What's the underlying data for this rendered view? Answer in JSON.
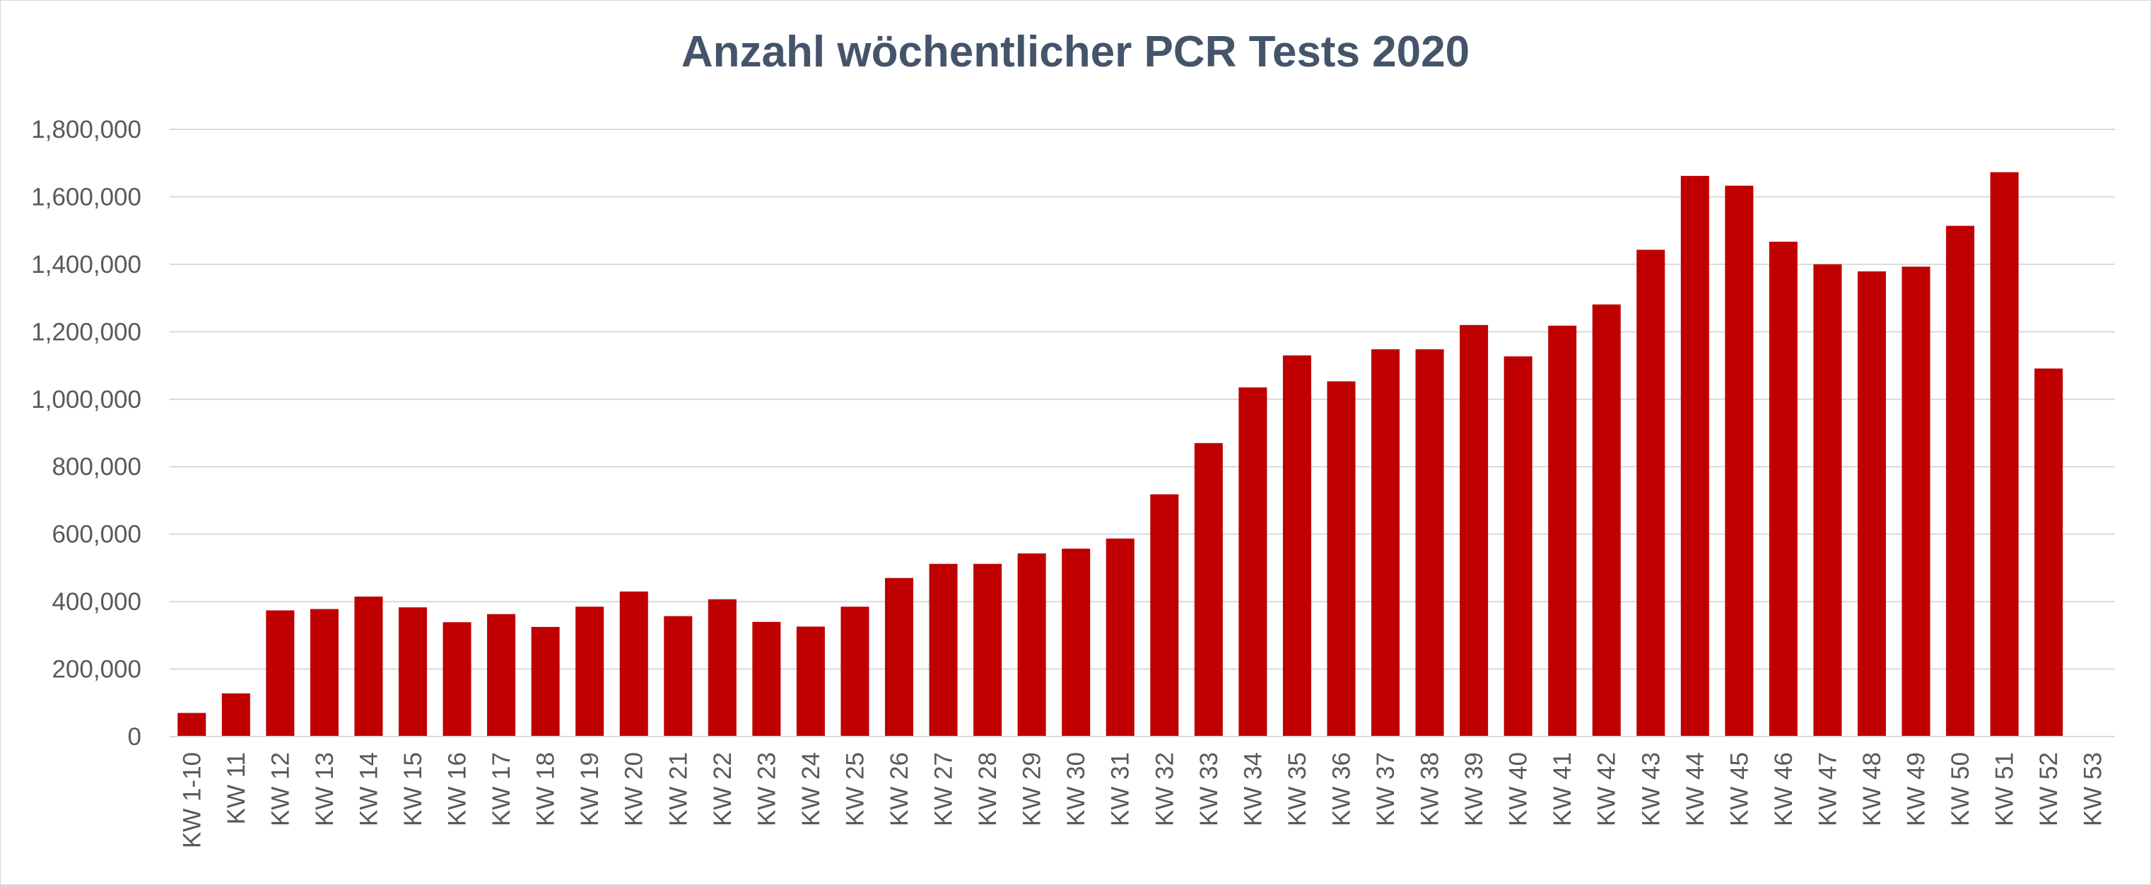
{
  "chart_data": {
    "type": "bar",
    "title": "Anzahl wöchentlicher PCR Tests 2020",
    "xlabel": "",
    "ylabel": "",
    "ylim": [
      0,
      1800000
    ],
    "yticks": [
      "0",
      "200,000",
      "400,000",
      "600,000",
      "800,000",
      "1,000,000",
      "1,200,000",
      "1,400,000",
      "1,600,000",
      "1,800,000"
    ],
    "grid": true,
    "bar_color": "#c00000",
    "categories": [
      "KW 1-10",
      "KW 11",
      "KW 12",
      "KW 13",
      "KW 14",
      "KW 15",
      "KW 16",
      "KW 17",
      "KW 18",
      "KW 19",
      "KW 20",
      "KW 21",
      "KW 22",
      "KW 23",
      "KW 24",
      "KW 25",
      "KW 26",
      "KW 27",
      "KW 28",
      "KW 29",
      "KW 30",
      "KW 31",
      "KW 32",
      "KW 33",
      "KW 34",
      "KW 35",
      "KW 36",
      "KW 37",
      "KW 38",
      "KW 39",
      "KW 40",
      "KW 41",
      "KW 42",
      "KW 43",
      "KW 44",
      "KW 45",
      "KW 46",
      "KW 47",
      "KW 48",
      "KW 49",
      "KW 50",
      "KW 51",
      "KW 52",
      "KW 53"
    ],
    "values": [
      70000,
      128000,
      374000,
      378000,
      415000,
      383000,
      339000,
      363000,
      325000,
      385000,
      430000,
      357000,
      407000,
      340000,
      326000,
      385000,
      470000,
      512000,
      512000,
      543000,
      557000,
      587000,
      718000,
      870000,
      1035000,
      1130000,
      1053000,
      1148000,
      1148000,
      1220000,
      1127000,
      1218000,
      1281000,
      1443000,
      1662000,
      1633000,
      1467000,
      1400000,
      1379000,
      1393000,
      1514000,
      1673000,
      1091000,
      0
    ]
  }
}
